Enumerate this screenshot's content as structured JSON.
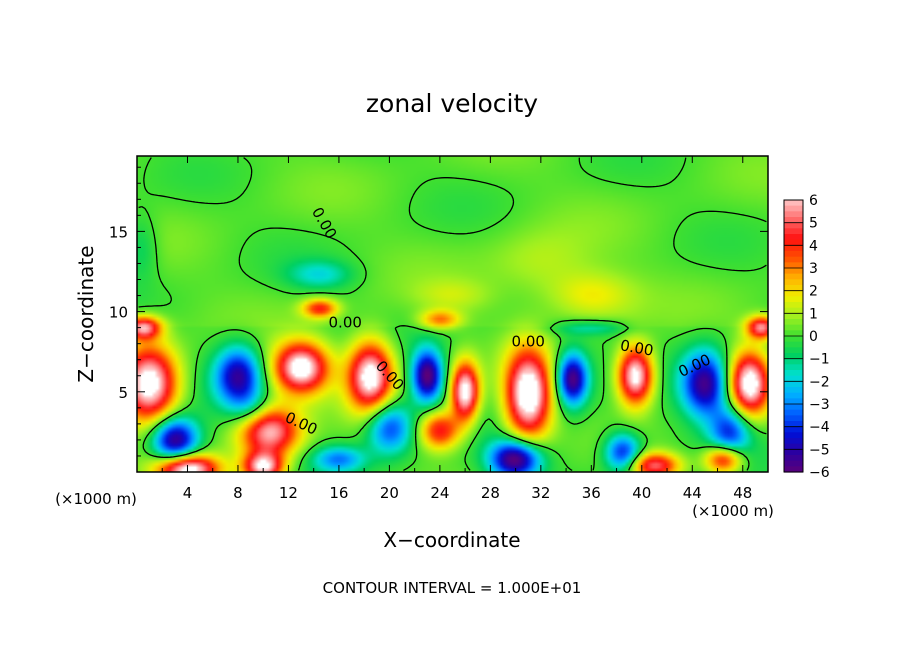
{
  "chart_data": {
    "type": "heatmap",
    "title": "zonal velocity",
    "xlabel": "X−coordinate",
    "ylabel": "Z−coordinate",
    "x_unit_left": "(×1000 m)",
    "x_unit_right": "(×1000 m)",
    "footer": "CONTOUR INTERVAL = 1.000E+01",
    "xlim": [
      0,
      50
    ],
    "ylim": [
      0,
      19.7
    ],
    "x_ticks": [
      4,
      8,
      12,
      16,
      20,
      24,
      28,
      32,
      36,
      40,
      44,
      48
    ],
    "x_tick_labels": [
      "4",
      "8",
      "12",
      "16",
      "20",
      "24",
      "28",
      "32",
      "36",
      "40",
      "44",
      "48"
    ],
    "y_ticks": [
      5,
      10,
      15
    ],
    "y_tick_labels": [
      "5",
      "10",
      "15"
    ],
    "colorbar": {
      "min": -6,
      "max": 6,
      "tick_labels": [
        "6",
        "5",
        "4",
        "3",
        "2",
        "1",
        "0",
        "−1",
        "−2",
        "−3",
        "−4",
        "−5",
        "−6"
      ],
      "tick_values": [
        6,
        5,
        4,
        3,
        2,
        1,
        0,
        -1,
        -2,
        -3,
        -4,
        -5,
        -6
      ],
      "colors": [
        "#5a007a",
        "#2b00a0",
        "#0010d8",
        "#0060ff",
        "#00b0ff",
        "#00e0d0",
        "#00d060",
        "#40e030",
        "#a0f020",
        "#f0f000",
        "#ffb000",
        "#ff5000",
        "#ff1010",
        "#ff6a6a",
        "#ffc8c8"
      ]
    },
    "contour_labels": [
      {
        "x": 14.8,
        "y": 15.5,
        "text": "0.00",
        "rotate": 60
      },
      {
        "x": 16.5,
        "y": 9.3,
        "text": "0.00",
        "rotate": 0
      },
      {
        "x": 20.0,
        "y": 6.0,
        "text": "0.00",
        "rotate": 48
      },
      {
        "x": 31.0,
        "y": 8.1,
        "text": "0.00",
        "rotate": 0
      },
      {
        "x": 39.6,
        "y": 7.7,
        "text": "0.00",
        "rotate": 10
      },
      {
        "x": 44.2,
        "y": 6.6,
        "text": "0.00",
        "rotate": -25
      },
      {
        "x": 13.0,
        "y": 3.0,
        "text": "0.00",
        "rotate": 25
      }
    ],
    "features": [
      {
        "x": 1.0,
        "y": 5.5,
        "value": 7.0,
        "sx": 2.2,
        "sy": 2.4
      },
      {
        "x": 13.0,
        "y": 6.5,
        "value": 7.0,
        "sx": 2.2,
        "sy": 1.6
      },
      {
        "x": 18.5,
        "y": 6.0,
        "value": 7.0,
        "sx": 1.8,
        "sy": 2.2
      },
      {
        "x": 26.0,
        "y": 5.0,
        "value": 7.0,
        "sx": 1.1,
        "sy": 1.8
      },
      {
        "x": 31.0,
        "y": 4.8,
        "value": 7.5,
        "sx": 1.8,
        "sy": 2.8
      },
      {
        "x": 39.5,
        "y": 6.0,
        "value": 7.0,
        "sx": 1.4,
        "sy": 1.8
      },
      {
        "x": 48.5,
        "y": 5.5,
        "value": 7.0,
        "sx": 1.6,
        "sy": 2.0
      },
      {
        "x": 10.5,
        "y": 2.5,
        "value": 6.0,
        "sx": 2.4,
        "sy": 1.6
      },
      {
        "x": 4.0,
        "y": 0.2,
        "value": 7.0,
        "sx": 2.4,
        "sy": 0.9
      },
      {
        "x": 10.0,
        "y": 0.3,
        "value": 6.0,
        "sx": 1.6,
        "sy": 0.9
      },
      {
        "x": 24.0,
        "y": 2.6,
        "value": 4.5,
        "sx": 1.6,
        "sy": 1.2
      },
      {
        "x": 0.5,
        "y": 9.0,
        "value": 5.5,
        "sx": 1.4,
        "sy": 0.7
      },
      {
        "x": 49.5,
        "y": 9.0,
        "value": 5.5,
        "sx": 1.2,
        "sy": 0.7
      },
      {
        "x": 14.5,
        "y": 10.2,
        "value": 4.0,
        "sx": 1.4,
        "sy": 0.6
      },
      {
        "x": 24.0,
        "y": 9.5,
        "value": 3.0,
        "sx": 1.6,
        "sy": 0.6
      },
      {
        "x": 41.0,
        "y": 0.4,
        "value": 5.0,
        "sx": 2.0,
        "sy": 0.8
      },
      {
        "x": 46.5,
        "y": 0.8,
        "value": 5.0,
        "sx": 1.5,
        "sy": 0.9
      },
      {
        "x": 8.0,
        "y": 6.0,
        "value": -5.0,
        "sx": 1.8,
        "sy": 1.8
      },
      {
        "x": 23.0,
        "y": 6.0,
        "value": -6.0,
        "sx": 1.2,
        "sy": 1.6
      },
      {
        "x": 34.5,
        "y": 5.8,
        "value": -6.0,
        "sx": 1.2,
        "sy": 1.6
      },
      {
        "x": 45.0,
        "y": 5.5,
        "value": -5.5,
        "sx": 1.8,
        "sy": 2.0
      },
      {
        "x": 3.0,
        "y": 2.0,
        "value": -6.0,
        "sx": 1.8,
        "sy": 1.4
      },
      {
        "x": 20.0,
        "y": 2.8,
        "value": -4.0,
        "sx": 1.8,
        "sy": 1.6
      },
      {
        "x": 30.0,
        "y": 0.8,
        "value": -6.5,
        "sx": 2.0,
        "sy": 1.2
      },
      {
        "x": 38.5,
        "y": 1.2,
        "value": -4.5,
        "sx": 1.4,
        "sy": 1.2
      },
      {
        "x": 47.0,
        "y": 2.5,
        "value": -4.0,
        "sx": 1.6,
        "sy": 1.6
      },
      {
        "x": 16.0,
        "y": 0.8,
        "value": -3.0,
        "sx": 2.0,
        "sy": 0.8
      },
      {
        "x": 14.5,
        "y": 12.3,
        "value": -1.8,
        "sx": 2.6,
        "sy": 0.9
      },
      {
        "x": 0.3,
        "y": 14.0,
        "value": -1.2,
        "sx": 1.4,
        "sy": 2.0
      },
      {
        "x": 36.0,
        "y": 9.0,
        "value": -1.5,
        "sx": 3.0,
        "sy": 0.5
      },
      {
        "x": 9.0,
        "y": 4.0,
        "value": -1.5,
        "sx": 1.6,
        "sy": 1.2
      },
      {
        "x": 36.0,
        "y": 11.0,
        "value": 1.8,
        "sx": 3.5,
        "sy": 1.5
      },
      {
        "x": 32.0,
        "y": 13.0,
        "value": 1.0,
        "sx": 4.0,
        "sy": 2.0
      },
      {
        "x": 25.0,
        "y": 11.0,
        "value": 1.0,
        "sx": 3.0,
        "sy": 1.0
      }
    ]
  }
}
